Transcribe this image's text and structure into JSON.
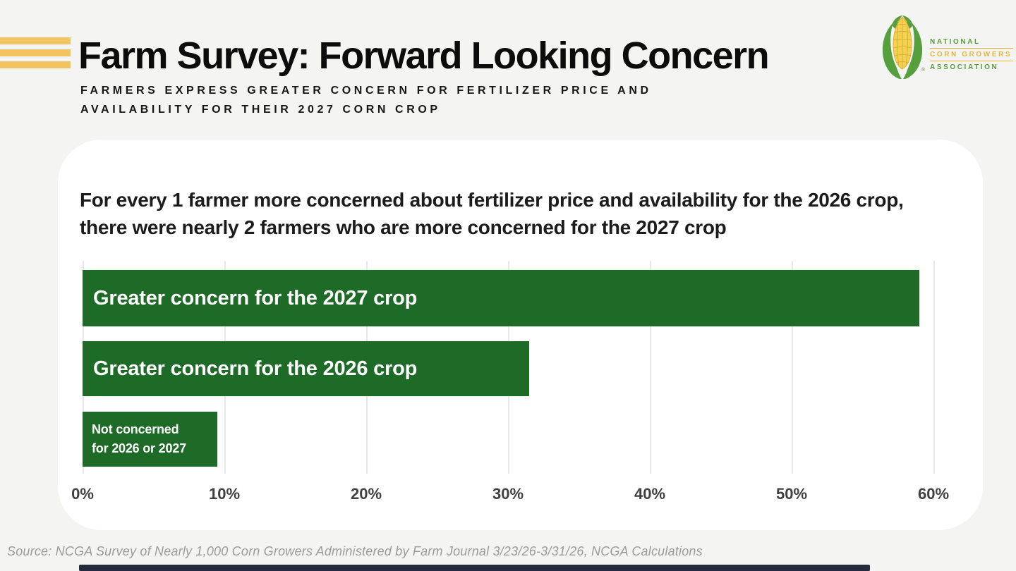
{
  "page": {
    "background": "#f4f4f2",
    "accent_stripe_color": "#f1c45f"
  },
  "header": {
    "title": "Farm Survey: Forward Looking Concern",
    "subtitle_line1": "FARMERS EXPRESS GREATER CONCERN FOR FERTILIZER PRICE AND",
    "subtitle_line2": "AVAILABILITY FOR THEIR 2027 CORN CROP"
  },
  "logo": {
    "icon": "corn-cob-icon",
    "org_line1": "NATIONAL",
    "org_line2": "CORN GROWERS",
    "org_line3": "ASSOCIATION",
    "registered_mark": "®",
    "green": "#55a03c",
    "gold": "#e9b53d"
  },
  "card": {
    "insight_line1": "For every 1 farmer more concerned about fertilizer price and availability for the 2026 crop,",
    "insight_line2": "there were nearly 2 farmers who are more concerned for the 2027 crop"
  },
  "chart_data": {
    "type": "bar",
    "orientation": "horizontal",
    "categories": [
      "Greater concern for the 2027 crop",
      "Greater concern for the 2026 crop",
      "Not concerned for 2026 or 2027"
    ],
    "values": [
      59,
      31.5,
      9.5
    ],
    "bar_labels": [
      [
        "Greater concern for the 2027 crop"
      ],
      [
        "Greater concern for the 2026 crop"
      ],
      [
        "Not concerned",
        "for 2026 or 2027"
      ]
    ],
    "bar_color": "#1d6b27",
    "label_color": "#ffffff",
    "xticks": [
      "0%",
      "10%",
      "20%",
      "30%",
      "40%",
      "50%",
      "60%"
    ],
    "xtick_values": [
      0,
      10,
      20,
      30,
      40,
      50,
      60
    ],
    "xlim": [
      0,
      62.5
    ],
    "grid": true,
    "gridline_color": "#e7e7e4",
    "title": "",
    "xlabel": "",
    "ylabel": ""
  },
  "footer": {
    "source": "Source: NCGA Survey of Nearly 1,000 Corn Growers Administered by Farm Journal 3/23/26-3/31/26, NCGA Calculations",
    "bar_color": "#252b3d"
  }
}
